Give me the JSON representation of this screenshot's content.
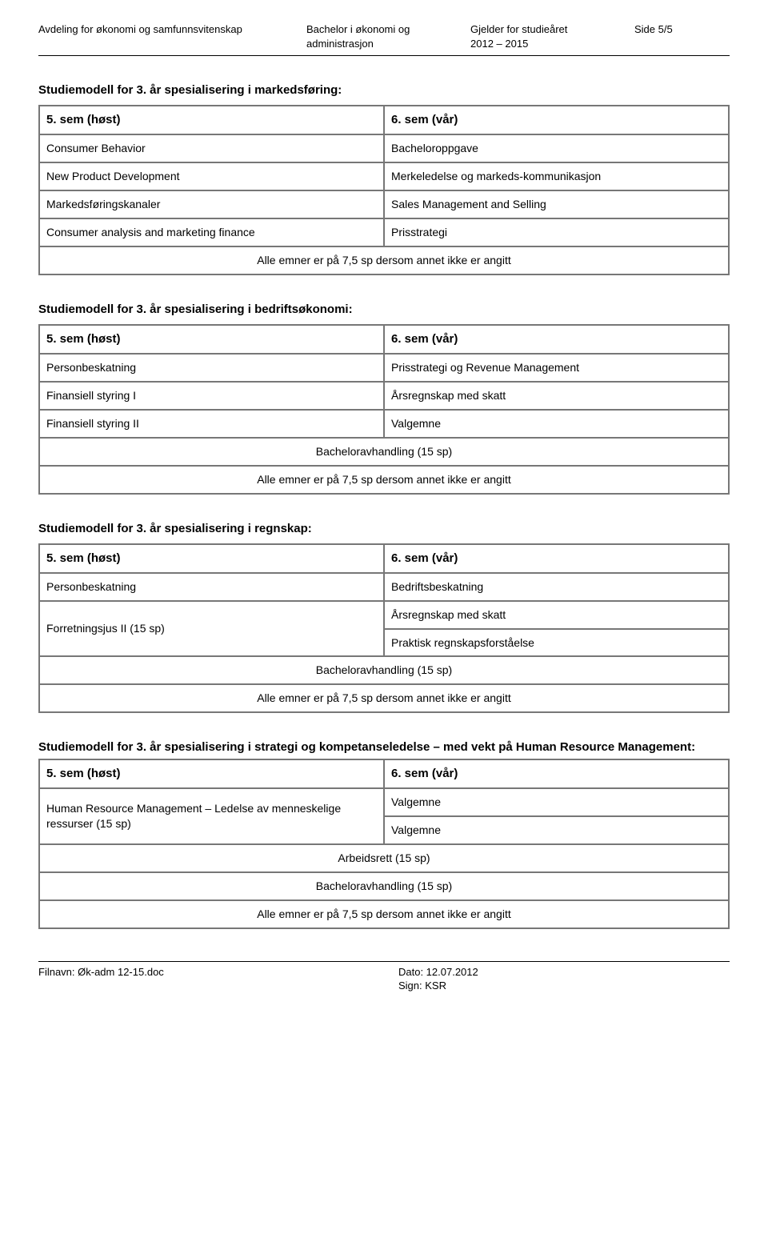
{
  "header": {
    "dept": "Avdeling for økonomi og samfunnsvitenskap",
    "program_l1": "Bachelor i økonomi og",
    "program_l2": "administrasjon",
    "valid_l1": "Gjelder for studieåret",
    "valid_l2": "2012 – 2015",
    "page": "Side 5/5"
  },
  "sections": [
    {
      "title": "Studiemodell for 3. år spesialisering i markedsføring:",
      "col_left": "5. sem (høst)",
      "col_right": "6. sem (vår)",
      "rows": [
        [
          "Consumer Behavior",
          "Bacheloroppgave"
        ],
        [
          "New Product Development",
          "Merkeledelse og markeds-kommunikasjon"
        ],
        [
          "Markedsføringskanaler",
          "Sales Management and Selling"
        ],
        [
          "Consumer analysis and marketing finance",
          "Prisstrategi"
        ]
      ],
      "footnote": "Alle emner er på 7,5 sp dersom annet ikke er angitt"
    },
    {
      "title": "Studiemodell for 3. år spesialisering i bedriftsøkonomi:",
      "col_left": "5. sem (høst)",
      "col_right": "6. sem (vår)",
      "rows": [
        [
          "Personbeskatning",
          "Prisstrategi og Revenue Management"
        ],
        [
          "Finansiell styring I",
          "Årsregnskap med skatt"
        ],
        [
          "Finansiell styring II",
          "Valgemne"
        ]
      ],
      "center1": "Bacheloravhandling (15 sp)",
      "footnote": "Alle emner er på 7,5 sp dersom annet ikke er angitt"
    },
    {
      "title": "Studiemodell for 3. år spesialisering i regnskap:",
      "col_left": "5. sem (høst)",
      "col_right": "6. sem (vår)",
      "row1": [
        "Personbeskatning",
        "Bedriftsbeskatning"
      ],
      "merged_left": "Forretningsjus II (15 sp)",
      "merged_right_a": "Årsregnskap med skatt",
      "merged_right_b": "Praktisk regnskapsforståelse",
      "center1": "Bacheloravhandling (15 sp)",
      "footnote": "Alle emner er på 7,5 sp dersom annet ikke er angitt"
    },
    {
      "title": "Studiemodell for 3. år spesialisering i strategi og kompetanseledelse – med vekt på Human Resource Management:",
      "col_left": "5. sem (høst)",
      "col_right": "6. sem (vår)",
      "merged_left": "Human Resource Management – Ledelse av menneskelige ressurser (15 sp)",
      "merged_right_a": "Valgemne",
      "merged_right_b": "Valgemne",
      "center1": "Arbeidsrett (15 sp)",
      "center2": "Bacheloravhandling (15 sp)",
      "footnote": "Alle emner er på 7,5 sp dersom annet ikke er angitt"
    }
  ],
  "footer": {
    "filename": "Filnavn: Øk-adm 12-15.doc",
    "date": "Dato: 12.07.2012",
    "sign": "Sign: KSR"
  }
}
